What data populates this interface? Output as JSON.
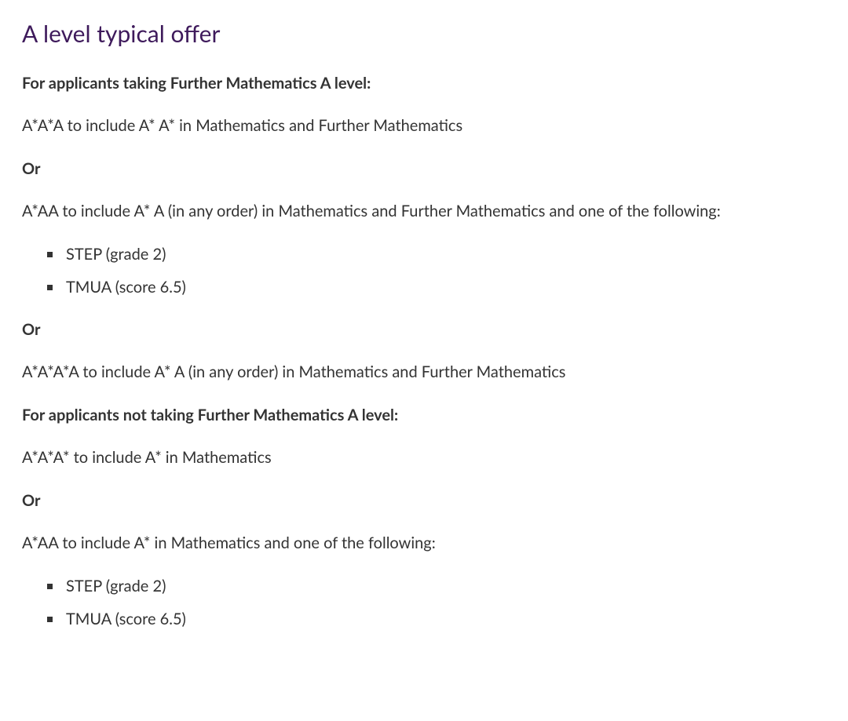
{
  "styles": {
    "heading_color": "#3e1a5b",
    "body_text_color": "#333333",
    "background_color": "#ffffff",
    "heading_fontsize": 30,
    "body_fontsize": 20,
    "heading_fontweight": 400,
    "bold_fontweight": 700,
    "body_fontweight": 400,
    "bullet_marker_size": 7,
    "bullet_marker_shape": "square",
    "bullet_marker_color": "#333333",
    "line_height": 1.55
  },
  "heading": "A level typical offer",
  "section1": {
    "intro": "For applicants taking Further Mathematics A level:",
    "option1": "A*A*A to include A* A* in Mathematics and Further Mathematics",
    "or1": "Or",
    "option2": "A*AA to include A* A (in any order) in Mathematics and Further Mathematics and one of the following:",
    "bullets1": {
      "item1": "STEP (grade 2)",
      "item2": "TMUA (score 6.5)"
    },
    "or2": "Or",
    "option3": "A*A*A*A to include A* A (in any order) in Mathematics and Further Mathematics"
  },
  "section2": {
    "intro": "For applicants not taking Further Mathematics A level:",
    "option1": "A*A*A* to include A* in Mathematics",
    "or1": "Or",
    "option2": "A*AA to include A* in Mathematics and one of the following:",
    "bullets1": {
      "item1": "STEP (grade 2)",
      "item2": "TMUA (score 6.5)"
    }
  }
}
